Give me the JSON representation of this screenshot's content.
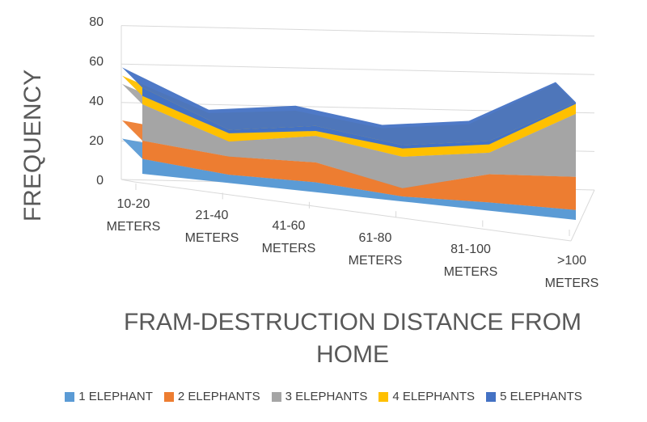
{
  "chart_data": {
    "type": "area",
    "stacked": true,
    "view": "3d",
    "categories": [
      "10-20 METERS",
      "21-40 METERS",
      "41-60 METERS",
      "61-80 METERS",
      "81-100 METERS",
      ">100 METERS"
    ],
    "series": [
      {
        "name": "1 ELEPHANT",
        "color": "#5B9BD5",
        "values": [
          9,
          5,
          6,
          3,
          5,
          6
        ]
      },
      {
        "name": "2 ELEPHANTS",
        "color": "#ED7D31",
        "values": [
          11,
          11,
          12,
          5,
          17,
          20
        ]
      },
      {
        "name": "3 ELEPHANTS",
        "color": "#A5A5A5",
        "values": [
          22,
          9,
          16,
          19,
          13,
          38
        ]
      },
      {
        "name": "4 ELEPHANTS",
        "color": "#FFC000",
        "values": [
          5,
          5,
          3,
          5,
          5,
          6
        ]
      },
      {
        "name": "5 ELEPHANTS",
        "color": "#4472C4",
        "values": [
          5,
          2,
          3,
          2,
          2,
          1
        ]
      }
    ],
    "ylabel": "FREQUENCY",
    "xlabel": "FRAM-DESTRUCTION DISTANCE FROM HOME",
    "yticks": [
      "0",
      "20",
      "40",
      "60",
      "80"
    ],
    "ylim": [
      0,
      80
    ],
    "legend_position": "bottom",
    "grid": true
  }
}
